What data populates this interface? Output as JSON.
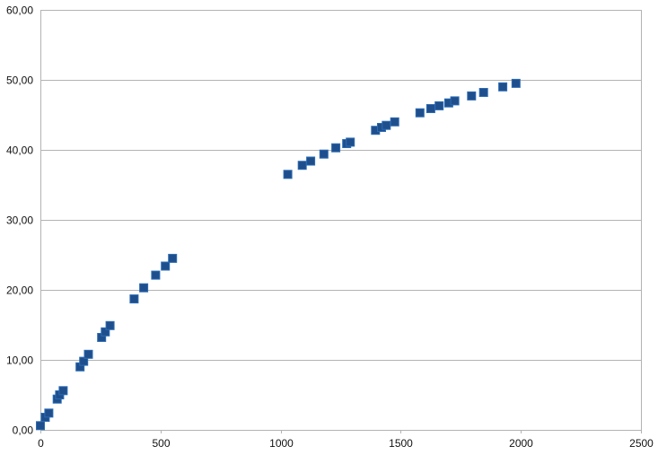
{
  "chart_data": {
    "type": "scatter",
    "title": "",
    "xlabel": "",
    "ylabel": "",
    "xlim": [
      0,
      2500
    ],
    "ylim": [
      0,
      60
    ],
    "x_ticks": [
      0,
      500,
      1000,
      1500,
      2000,
      2500
    ],
    "x_tick_labels": [
      "0",
      "500",
      "1000",
      "1500",
      "2000",
      "2500"
    ],
    "y_ticks": [
      0,
      10,
      20,
      30,
      40,
      50,
      60
    ],
    "y_tick_labels": [
      "0,00",
      "10,00",
      "20,00",
      "30,00",
      "40,00",
      "50,00",
      "60,00"
    ],
    "grid": "horizontal",
    "legend": "none",
    "marker": "square",
    "colors": {
      "marker_fill": "#1f4e8c",
      "marker_stroke": "#2a6bb3",
      "grid": "#b3b3b3"
    },
    "series": [
      {
        "points": [
          [
            0,
            0.6
          ],
          [
            20,
            1.8
          ],
          [
            35,
            2.4
          ],
          [
            70,
            4.4
          ],
          [
            80,
            5.0
          ],
          [
            95,
            5.6
          ],
          [
            165,
            9.0
          ],
          [
            180,
            9.8
          ],
          [
            200,
            10.8
          ],
          [
            255,
            13.2
          ],
          [
            270,
            14.0
          ],
          [
            290,
            14.9
          ],
          [
            390,
            18.7
          ],
          [
            430,
            20.3
          ],
          [
            480,
            22.1
          ],
          [
            520,
            23.4
          ],
          [
            550,
            24.5
          ],
          [
            1030,
            36.5
          ],
          [
            1090,
            37.8
          ],
          [
            1125,
            38.4
          ],
          [
            1180,
            39.4
          ],
          [
            1230,
            40.3
          ],
          [
            1275,
            40.9
          ],
          [
            1290,
            41.1
          ],
          [
            1395,
            42.8
          ],
          [
            1420,
            43.2
          ],
          [
            1440,
            43.5
          ],
          [
            1475,
            44.0
          ],
          [
            1580,
            45.3
          ],
          [
            1625,
            45.9
          ],
          [
            1660,
            46.3
          ],
          [
            1700,
            46.7
          ],
          [
            1725,
            47.0
          ],
          [
            1795,
            47.7
          ],
          [
            1845,
            48.2
          ],
          [
            1925,
            49.0
          ],
          [
            1980,
            49.5
          ]
        ]
      }
    ]
  }
}
